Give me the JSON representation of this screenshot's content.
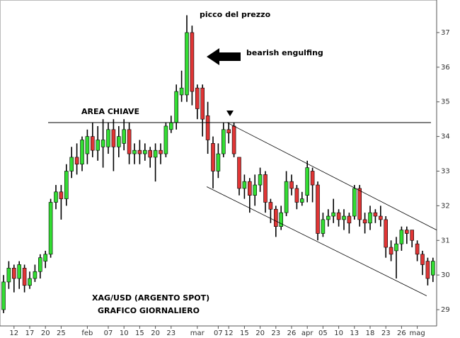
{
  "chart_data": {
    "type": "candlestick",
    "annotations": [
      "picco del prezzo",
      "bearish engulfing",
      "AREA CHIAVE",
      "XAG/USD (ARGENTO SPOT)",
      "GRAFICO GIORNALIERO"
    ],
    "categories": [
      null,
      null,
      "12",
      null,
      null,
      "17",
      null,
      null,
      "20",
      null,
      null,
      "25",
      null,
      null,
      null,
      null,
      "feb",
      null,
      null,
      null,
      "07",
      null,
      null,
      "10",
      null,
      null,
      "15",
      null,
      null,
      "20",
      null,
      null,
      "23",
      null,
      null,
      null,
      null,
      "mar",
      null,
      null,
      null,
      "07",
      null,
      "12",
      null,
      null,
      "15",
      null,
      null,
      "20",
      null,
      null,
      "23",
      null,
      null,
      "26",
      null,
      null,
      "apr",
      null,
      null,
      "05",
      null,
      null,
      "10",
      null,
      null,
      "13",
      null,
      null,
      "18",
      null,
      null,
      "23",
      null,
      null,
      "26",
      null,
      null,
      "mag",
      null,
      null,
      null
    ],
    "open": [
      29.0,
      29.8,
      30.2,
      29.9,
      30.2,
      29.7,
      29.9,
      30.1,
      30.4,
      30.6,
      32.1,
      32.4,
      32.2,
      33.0,
      33.4,
      33.2,
      33.5,
      34.0,
      33.6,
      33.7,
      33.7,
      34.2,
      33.7,
      33.8,
      34.2,
      33.5,
      33.6,
      33.5,
      33.6,
      33.4,
      33.6,
      33.5,
      34.2,
      34.4,
      35.2,
      35.2,
      37.0,
      35.4,
      35.4,
      34.6,
      33.8,
      33.0,
      33.5,
      34.2,
      34.3,
      33.4,
      32.5,
      32.7,
      32.3,
      32.6,
      32.9,
      32.1,
      31.9,
      31.4,
      31.8,
      32.7,
      32.5,
      32.1,
      32.3,
      33.0,
      32.6,
      31.2,
      31.6,
      31.7,
      31.8,
      31.6,
      31.7,
      31.7,
      32.5,
      31.6,
      31.5,
      31.8,
      31.7,
      31.6,
      30.8,
      30.7,
      30.9,
      31.3,
      31.3,
      30.9,
      30.6,
      30.4,
      30.0
    ],
    "high": [
      30.0,
      30.4,
      30.3,
      30.4,
      30.3,
      30.1,
      30.3,
      30.6,
      30.7,
      32.2,
      32.6,
      32.6,
      33.2,
      33.7,
      33.8,
      34.0,
      34.2,
      34.4,
      34.3,
      34.5,
      34.4,
      34.5,
      34.3,
      34.5,
      34.4,
      33.8,
      33.9,
      33.8,
      33.7,
      33.8,
      33.8,
      34.4,
      34.6,
      35.5,
      35.9,
      37.5,
      37.2,
      35.5,
      35.5,
      35.0,
      34.0,
      33.8,
      34.4,
      34.4,
      34.4,
      33.4,
      32.9,
      32.8,
      32.9,
      33.1,
      33.0,
      32.2,
      32.0,
      32.0,
      33.0,
      32.9,
      32.6,
      32.4,
      33.3,
      33.1,
      32.7,
      31.8,
      31.9,
      32.2,
      31.9,
      31.9,
      31.8,
      32.6,
      32.6,
      31.8,
      32.0,
      31.9,
      32.0,
      31.7,
      31.0,
      31.1,
      31.4,
      31.4,
      31.3,
      31.0,
      30.7,
      30.5,
      30.5
    ],
    "low": [
      28.9,
      29.6,
      29.5,
      29.6,
      29.5,
      29.6,
      29.8,
      29.9,
      30.2,
      30.5,
      31.9,
      31.6,
      32.0,
      32.8,
      32.9,
      33.0,
      33.2,
      33.4,
      33.3,
      33.1,
      33.5,
      33.0,
      33.4,
      33.6,
      33.2,
      33.2,
      33.2,
      33.3,
      33.1,
      32.7,
      33.2,
      33.4,
      34.1,
      34.2,
      35.0,
      35.0,
      34.9,
      34.5,
      34.0,
      33.5,
      32.5,
      32.8,
      33.4,
      33.8,
      33.4,
      32.3,
      32.2,
      31.8,
      32.0,
      32.4,
      31.8,
      31.5,
      31.1,
      31.3,
      31.7,
      32.3,
      31.9,
      32.0,
      32.1,
      32.1,
      31.0,
      31.1,
      31.4,
      31.5,
      31.4,
      31.3,
      31.2,
      31.6,
      31.4,
      31.2,
      31.3,
      31.5,
      31.4,
      30.5,
      30.4,
      29.9,
      30.7,
      30.9,
      30.8,
      30.4,
      30.0,
      29.7,
      29.8
    ],
    "close": [
      29.8,
      30.2,
      29.9,
      30.3,
      29.7,
      29.9,
      30.1,
      30.5,
      30.6,
      32.1,
      32.4,
      32.2,
      33.0,
      33.4,
      33.2,
      33.9,
      34.0,
      33.6,
      33.9,
      33.9,
      34.2,
      33.7,
      34.0,
      34.2,
      33.5,
      33.6,
      33.5,
      33.6,
      33.4,
      33.6,
      33.5,
      34.3,
      34.4,
      35.3,
      35.4,
      37.0,
      35.3,
      34.8,
      34.5,
      33.9,
      33.0,
      33.5,
      34.2,
      34.1,
      33.5,
      32.5,
      32.7,
      32.3,
      32.6,
      32.9,
      32.1,
      31.9,
      31.4,
      31.8,
      32.7,
      32.5,
      32.1,
      32.2,
      33.1,
      32.6,
      31.2,
      31.6,
      31.7,
      31.8,
      31.6,
      31.7,
      31.5,
      32.5,
      31.6,
      31.5,
      31.8,
      31.7,
      31.6,
      30.8,
      30.6,
      30.9,
      31.3,
      31.2,
      31.0,
      30.6,
      30.3,
      29.9,
      30.4
    ],
    "up_color": "#33dd33",
    "down_color": "#e03535",
    "key_level": 34.4,
    "channel": [
      {
        "x": [
          42.7,
          82.7
        ],
        "y": [
          34.4,
          31.3
        ]
      },
      {
        "x": [
          38.8,
          80.8
        ],
        "y": [
          32.55,
          29.4
        ]
      }
    ],
    "ylim": [
      28.53,
      37.94
    ],
    "yticks": [
      29,
      30,
      31,
      32,
      33,
      34,
      35,
      36,
      37
    ]
  }
}
